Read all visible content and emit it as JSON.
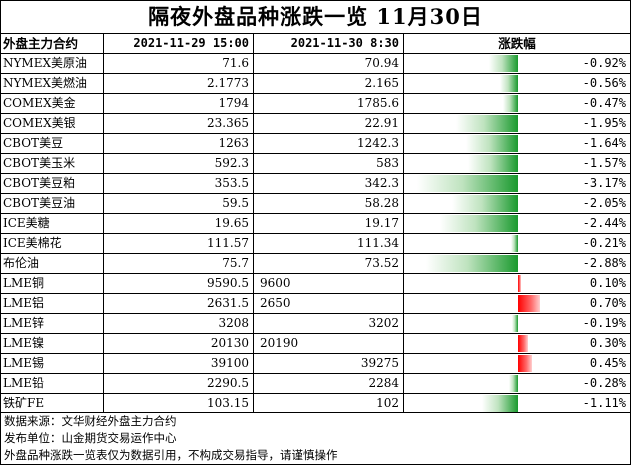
{
  "title": "隔夜外盘品种涨跌一览 11月30日",
  "header": {
    "name": "外盘主力合约",
    "v1": "2021-11-29 15:00",
    "v2": "2021-11-30  8:30",
    "change": "涨跌幅"
  },
  "rows": [
    {
      "name": "NYMEX美原油",
      "v1": "71.6",
      "v2": "70.94",
      "pct": "-0.92%",
      "change": -0.92
    },
    {
      "name": "NYMEX美燃油",
      "v1": "2.1773",
      "v2": "2.165",
      "pct": "-0.56%",
      "change": -0.56
    },
    {
      "name": "COMEX美金",
      "v1": "1794",
      "v2": "1785.6",
      "pct": "-0.47%",
      "change": -0.47
    },
    {
      "name": "COMEX美银",
      "v1": "23.365",
      "v2": "22.91",
      "pct": "-1.95%",
      "change": -1.95
    },
    {
      "name": "CBOT美豆",
      "v1": "1263",
      "v2": "1242.3",
      "pct": "-1.64%",
      "change": -1.64
    },
    {
      "name": "CBOT美玉米",
      "v1": "592.3",
      "v2": "583",
      "pct": "-1.57%",
      "change": -1.57
    },
    {
      "name": "CBOT美豆粕",
      "v1": "353.5",
      "v2": "342.3",
      "pct": "-3.17%",
      "change": -3.17
    },
    {
      "name": "CBOT美豆油",
      "v1": "59.5",
      "v2": "58.28",
      "pct": "-2.05%",
      "change": -2.05
    },
    {
      "name": "ICE美糖",
      "v1": "19.65",
      "v2": "19.17",
      "pct": "-2.44%",
      "change": -2.44
    },
    {
      "name": "ICE美棉花",
      "v1": "111.57",
      "v2": "111.34",
      "pct": "-0.21%",
      "change": -0.21
    },
    {
      "name": "布伦油",
      "v1": "75.7",
      "v2": "73.52",
      "pct": "-2.88%",
      "change": -2.88
    },
    {
      "name": "LME铜",
      "v1": "9590.5",
      "v2": "9600",
      "pct": "0.10%",
      "change": 0.1,
      "v2_left": true
    },
    {
      "name": "LME铝",
      "v1": "2631.5",
      "v2": "2650",
      "pct": "0.70%",
      "change": 0.7,
      "v2_left": true
    },
    {
      "name": "LME锌",
      "v1": "3208",
      "v2": "3202",
      "pct": "-0.19%",
      "change": -0.19
    },
    {
      "name": "LME镍",
      "v1": "20130",
      "v2": "20190",
      "pct": "0.30%",
      "change": 0.3,
      "v2_left": true
    },
    {
      "name": "LME锡",
      "v1": "39100",
      "v2": "39275",
      "pct": "0.45%",
      "change": 0.45
    },
    {
      "name": "LME铅",
      "v1": "2290.5",
      "v2": "2284",
      "pct": "-0.28%",
      "change": -0.28
    },
    {
      "name": "铁矿FE",
      "v1": "103.15",
      "v2": "102",
      "pct": "-1.11%",
      "change": -1.11
    }
  ],
  "notes": [
    "数据来源：文华财经外盘主力合约",
    "发布单位：山金期货交易运作中心",
    "外盘品种涨跌一览表仅为数据引用，不构成交易指导，请谨慎操作"
  ],
  "colors": {
    "down": "#1a9a2e",
    "up": "#ff0000"
  }
}
